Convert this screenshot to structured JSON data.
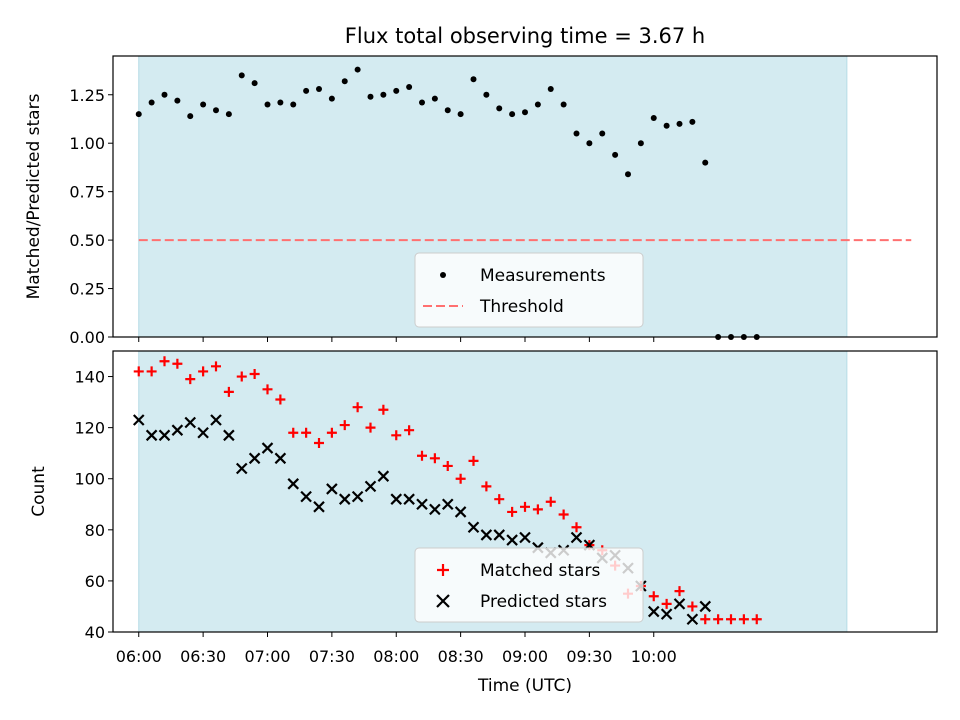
{
  "figure": {
    "title": "Flux total observing time = 3.67 h",
    "xlabel": "Time (UTC)",
    "xticks": [
      "06:00",
      "06:30",
      "07:00",
      "07:30",
      "08:00",
      "08:30",
      "09:00",
      "09:30",
      "10:00"
    ]
  },
  "colors": {
    "shade": "#d4ebf1",
    "threshold": "#ff7070",
    "matched": "#ff0000",
    "predicted": "#000000",
    "measure": "#000000"
  },
  "chart_data": [
    {
      "type": "scatter",
      "ylabel": "Matched/Predicted stars",
      "xlim": [
        -12,
        372
      ],
      "ylim": [
        0,
        1.45
      ],
      "yticks": [
        "0.00",
        "0.25",
        "0.50",
        "0.75",
        "1.00",
        "1.25"
      ],
      "shaded_x_range": [
        0,
        330
      ],
      "x_unit": "minutes after 06:00 UTC",
      "legend_position": "lower center",
      "series": [
        {
          "name": "Measurements",
          "marker": "dot",
          "points": [
            [
              0,
              1.15
            ],
            [
              6,
              1.21
            ],
            [
              12,
              1.25
            ],
            [
              18,
              1.22
            ],
            [
              24,
              1.14
            ],
            [
              30,
              1.2
            ],
            [
              36,
              1.17
            ],
            [
              42,
              1.15
            ],
            [
              48,
              1.35
            ],
            [
              54,
              1.31
            ],
            [
              60,
              1.2
            ],
            [
              66,
              1.21
            ],
            [
              72,
              1.2
            ],
            [
              78,
              1.27
            ],
            [
              84,
              1.28
            ],
            [
              90,
              1.23
            ],
            [
              96,
              1.32
            ],
            [
              102,
              1.38
            ],
            [
              108,
              1.24
            ],
            [
              114,
              1.25
            ],
            [
              120,
              1.27
            ],
            [
              126,
              1.29
            ],
            [
              132,
              1.21
            ],
            [
              138,
              1.23
            ],
            [
              144,
              1.17
            ],
            [
              150,
              1.15
            ],
            [
              156,
              1.33
            ],
            [
              162,
              1.25
            ],
            [
              168,
              1.18
            ],
            [
              174,
              1.15
            ],
            [
              180,
              1.16
            ],
            [
              186,
              1.2
            ],
            [
              192,
              1.28
            ],
            [
              198,
              1.2
            ],
            [
              204,
              1.05
            ],
            [
              210,
              1.0
            ],
            [
              216,
              1.05
            ],
            [
              222,
              0.94
            ],
            [
              228,
              0.84
            ],
            [
              234,
              1.0
            ],
            [
              240,
              1.13
            ],
            [
              246,
              1.09
            ],
            [
              252,
              1.1
            ],
            [
              258,
              1.11
            ],
            [
              264,
              0.9
            ],
            [
              270,
              0.0
            ],
            [
              276,
              0.0
            ],
            [
              282,
              0.0
            ],
            [
              288,
              0.0
            ]
          ]
        },
        {
          "name": "Threshold",
          "style": "dashed",
          "points": [
            [
              0,
              0.5
            ],
            [
              360,
              0.5
            ]
          ]
        }
      ]
    },
    {
      "type": "scatter",
      "ylabel": "Count",
      "xlim": [
        -12,
        372
      ],
      "ylim": [
        40,
        150
      ],
      "yticks": [
        "40",
        "60",
        "80",
        "100",
        "120",
        "140"
      ],
      "shaded_x_range": [
        0,
        330
      ],
      "x_unit": "minutes after 06:00 UTC",
      "legend_position": "lower center",
      "series": [
        {
          "name": "Matched stars",
          "marker": "plus",
          "points": [
            [
              0,
              142
            ],
            [
              6,
              142
            ],
            [
              12,
              146
            ],
            [
              18,
              145
            ],
            [
              24,
              139
            ],
            [
              30,
              142
            ],
            [
              36,
              144
            ],
            [
              42,
              134
            ],
            [
              48,
              140
            ],
            [
              54,
              141
            ],
            [
              60,
              135
            ],
            [
              66,
              131
            ],
            [
              72,
              118
            ],
            [
              78,
              118
            ],
            [
              84,
              114
            ],
            [
              90,
              118
            ],
            [
              96,
              121
            ],
            [
              102,
              128
            ],
            [
              108,
              120
            ],
            [
              114,
              127
            ],
            [
              120,
              117
            ],
            [
              126,
              119
            ],
            [
              132,
              109
            ],
            [
              138,
              108
            ],
            [
              144,
              105
            ],
            [
              150,
              100
            ],
            [
              156,
              107
            ],
            [
              162,
              97
            ],
            [
              168,
              92
            ],
            [
              174,
              87
            ],
            [
              180,
              89
            ],
            [
              186,
              88
            ],
            [
              192,
              91
            ],
            [
              198,
              86
            ],
            [
              204,
              81
            ],
            [
              210,
              74
            ],
            [
              216,
              72
            ],
            [
              222,
              66
            ],
            [
              228,
              55
            ],
            [
              234,
              58
            ],
            [
              240,
              54
            ],
            [
              246,
              51
            ],
            [
              252,
              56
            ],
            [
              258,
              50
            ],
            [
              264,
              45
            ],
            [
              270,
              45
            ],
            [
              276,
              45
            ],
            [
              282,
              45
            ],
            [
              288,
              45
            ]
          ]
        },
        {
          "name": "Predicted stars",
          "marker": "x",
          "points": [
            [
              0,
              123
            ],
            [
              6,
              117
            ],
            [
              12,
              117
            ],
            [
              18,
              119
            ],
            [
              24,
              122
            ],
            [
              30,
              118
            ],
            [
              36,
              123
            ],
            [
              42,
              117
            ],
            [
              48,
              104
            ],
            [
              54,
              108
            ],
            [
              60,
              112
            ],
            [
              66,
              108
            ],
            [
              72,
              98
            ],
            [
              78,
              93
            ],
            [
              84,
              89
            ],
            [
              90,
              96
            ],
            [
              96,
              92
            ],
            [
              102,
              93
            ],
            [
              108,
              97
            ],
            [
              114,
              101
            ],
            [
              120,
              92
            ],
            [
              126,
              92
            ],
            [
              132,
              90
            ],
            [
              138,
              88
            ],
            [
              144,
              90
            ],
            [
              150,
              87
            ],
            [
              156,
              81
            ],
            [
              162,
              78
            ],
            [
              168,
              78
            ],
            [
              174,
              76
            ],
            [
              180,
              77
            ],
            [
              186,
              73
            ],
            [
              192,
              71
            ],
            [
              198,
              72
            ],
            [
              204,
              77
            ],
            [
              210,
              74
            ],
            [
              216,
              69
            ],
            [
              222,
              70
            ],
            [
              228,
              65
            ],
            [
              234,
              58
            ],
            [
              240,
              48
            ],
            [
              246,
              47
            ],
            [
              252,
              51
            ],
            [
              258,
              45
            ],
            [
              264,
              50
            ]
          ]
        }
      ]
    }
  ]
}
